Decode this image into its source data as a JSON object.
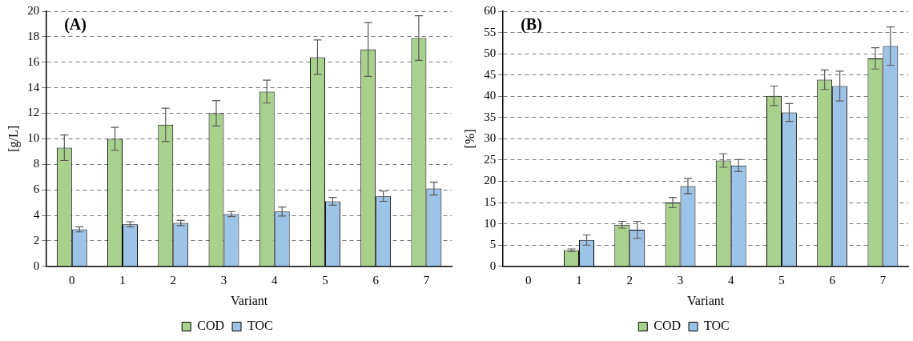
{
  "chart_data": [
    {
      "type": "bar",
      "title": "(A)",
      "xlabel": "Variant",
      "ylabel": "[g/L]",
      "categories": [
        "0",
        "1",
        "2",
        "3",
        "4",
        "5",
        "6",
        "7"
      ],
      "series": [
        {
          "name": "COD",
          "color": "#a9d18e",
          "values": [
            9.3,
            10.0,
            11.1,
            12.0,
            13.7,
            16.4,
            17.0,
            17.9
          ],
          "errors": [
            1.0,
            0.9,
            1.3,
            1.0,
            0.9,
            1.35,
            2.1,
            1.75
          ]
        },
        {
          "name": "TOC",
          "color": "#9dc3e6",
          "values": [
            2.9,
            3.3,
            3.4,
            4.1,
            4.3,
            5.1,
            5.5,
            6.1
          ],
          "errors": [
            0.2,
            0.2,
            0.2,
            0.2,
            0.35,
            0.3,
            0.4,
            0.5
          ]
        }
      ],
      "ylim": [
        0,
        20
      ],
      "yticks": [
        0,
        2,
        4,
        6,
        8,
        10,
        12,
        14,
        16,
        18,
        20
      ],
      "grid": "y",
      "legend": "bottom"
    },
    {
      "type": "bar",
      "title": "(B)",
      "xlabel": "Variant",
      "ylabel": "[%]",
      "categories": [
        "0",
        "1",
        "2",
        "3",
        "4",
        "5",
        "6",
        "7"
      ],
      "series": [
        {
          "name": "COD",
          "color": "#a9d18e",
          "values": [
            null,
            3.8,
            9.8,
            15.0,
            24.9,
            40.1,
            43.9,
            48.9
          ],
          "errors": [
            null,
            0.3,
            0.8,
            1.2,
            1.6,
            2.3,
            2.3,
            2.5
          ]
        },
        {
          "name": "TOC",
          "color": "#9dc3e6",
          "values": [
            null,
            6.2,
            8.6,
            18.9,
            23.7,
            36.2,
            42.4,
            51.8
          ],
          "errors": [
            null,
            1.2,
            2.0,
            1.8,
            1.4,
            2.1,
            3.5,
            4.5
          ]
        }
      ],
      "ylim": [
        0,
        60
      ],
      "yticks": [
        0,
        5,
        10,
        15,
        20,
        25,
        30,
        35,
        40,
        45,
        50,
        55,
        60
      ],
      "grid": "y",
      "legend": "bottom"
    }
  ]
}
